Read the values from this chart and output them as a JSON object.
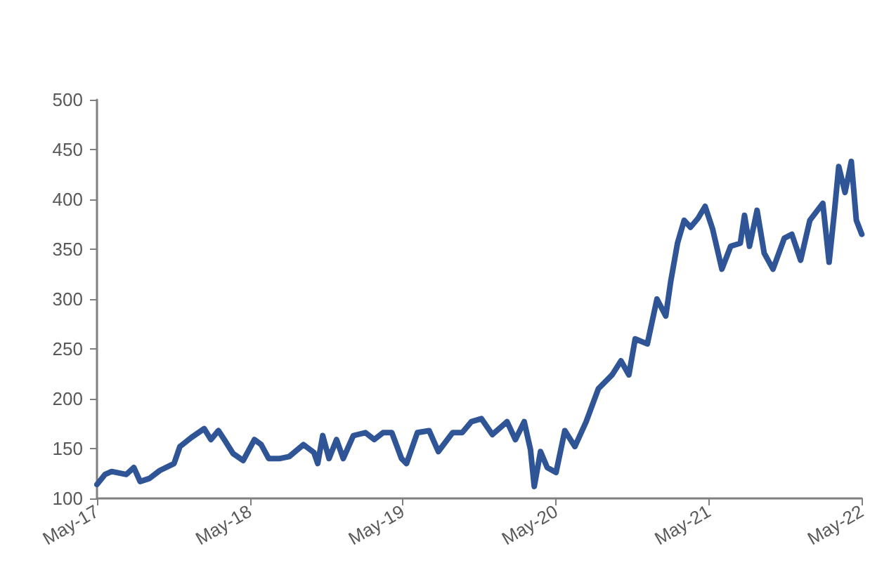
{
  "chart_data": {
    "type": "line",
    "xlim": [
      "2017-05-01",
      "2022-05-01"
    ],
    "xticks": [
      {
        "value": "2017-05-01",
        "label": "May-17"
      },
      {
        "value": "2018-05-01",
        "label": "May-18"
      },
      {
        "value": "2019-05-01",
        "label": "May-19"
      },
      {
        "value": "2020-05-01",
        "label": "May-20"
      },
      {
        "value": "2021-05-01",
        "label": "May-21"
      },
      {
        "value": "2022-05-01",
        "label": "May-22"
      }
    ],
    "ylim": [
      100,
      500
    ],
    "yticks": [
      100,
      150,
      200,
      250,
      300,
      350,
      400,
      450,
      500
    ],
    "marker": "none",
    "line_style": "solid",
    "x": [
      "2017-05-01",
      "2017-05-20",
      "2017-06-05",
      "2017-07-10",
      "2017-07-28",
      "2017-08-12",
      "2017-09-03",
      "2017-09-28",
      "2017-11-01",
      "2017-11-15",
      "2017-12-12",
      "2018-01-12",
      "2018-01-28",
      "2018-02-15",
      "2018-03-01",
      "2018-03-22",
      "2018-04-15",
      "2018-05-12",
      "2018-05-28",
      "2018-06-15",
      "2018-07-12",
      "2018-08-03",
      "2018-09-06",
      "2018-10-01",
      "2018-10-10",
      "2018-10-22",
      "2018-11-06",
      "2018-11-24",
      "2018-12-10",
      "2019-01-03",
      "2019-02-01",
      "2019-02-22",
      "2019-03-15",
      "2019-04-05",
      "2019-04-28",
      "2019-05-10",
      "2019-06-05",
      "2019-07-03",
      "2019-07-25",
      "2019-08-28",
      "2019-09-20",
      "2019-10-12",
      "2019-11-05",
      "2019-12-01",
      "2020-01-05",
      "2020-01-25",
      "2020-02-15",
      "2020-03-01",
      "2020-03-10",
      "2020-03-25",
      "2020-04-10",
      "2020-05-01",
      "2020-05-22",
      "2020-06-15",
      "2020-07-12",
      "2020-08-10",
      "2020-09-12",
      "2020-10-03",
      "2020-10-22",
      "2020-11-06",
      "2020-12-05",
      "2020-12-28",
      "2021-01-18",
      "2021-01-30",
      "2021-02-15",
      "2021-03-03",
      "2021-03-18",
      "2021-04-05",
      "2021-04-22",
      "2021-05-10",
      "2021-06-01",
      "2021-06-22",
      "2021-07-15",
      "2021-07-25",
      "2021-08-06",
      "2021-08-24",
      "2021-09-10",
      "2021-10-01",
      "2021-10-28",
      "2021-11-15",
      "2021-12-06",
      "2021-12-28",
      "2022-01-28",
      "2022-02-12",
      "2022-02-25",
      "2022-03-07",
      "2022-03-22",
      "2022-04-06",
      "2022-04-18",
      "2022-05-01"
    ],
    "series": [
      {
        "color": "#2f5597",
        "values": [
          114,
          124,
          127,
          124,
          131,
          117,
          120,
          128,
          135,
          152,
          161,
          170,
          159,
          168,
          159,
          145,
          138,
          159,
          154,
          140,
          140,
          142,
          154,
          146,
          135,
          163,
          140,
          159,
          140,
          163,
          166,
          159,
          166,
          166,
          140,
          135,
          166,
          168,
          147,
          166,
          166,
          177,
          180,
          164,
          177,
          159,
          177,
          149,
          112,
          147,
          131,
          126,
          168,
          152,
          177,
          210,
          224,
          238,
          224,
          260,
          255,
          300,
          283,
          318,
          356,
          379,
          372,
          381,
          393,
          370,
          330,
          353,
          356,
          384,
          353,
          389,
          346,
          330,
          361,
          365,
          339,
          379,
          396,
          337,
          389,
          433,
          407,
          438,
          379,
          365
        ]
      }
    ]
  }
}
